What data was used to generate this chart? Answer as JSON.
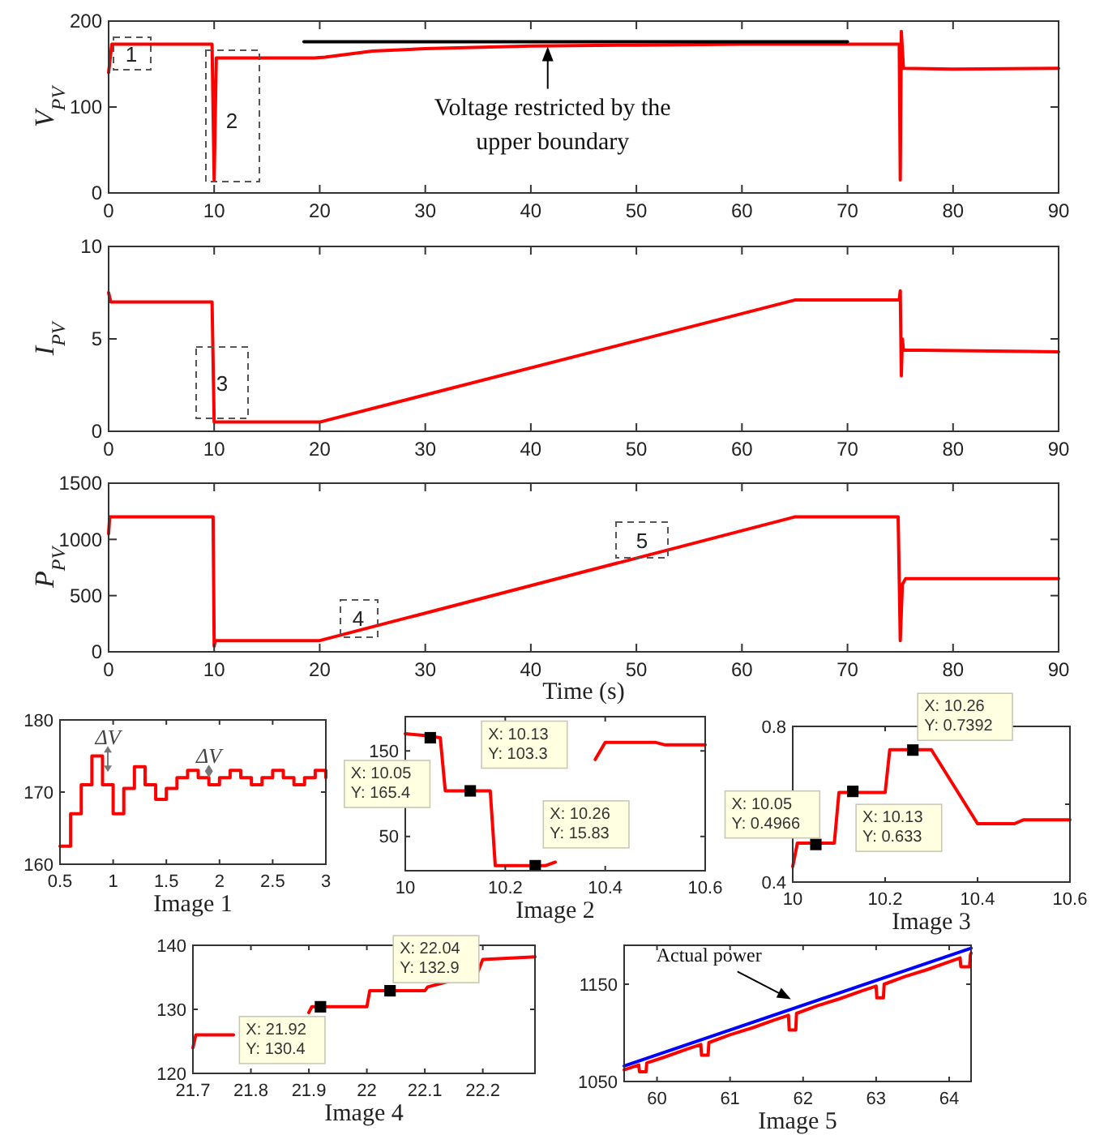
{
  "chart_data": [
    {
      "type": "line",
      "ylabel": "V$_{PV}$",
      "xlim": [
        0,
        90
      ],
      "ylim": [
        0,
        200
      ],
      "xticks": [
        0,
        10,
        20,
        30,
        40,
        50,
        60,
        70,
        80,
        90
      ],
      "yticks": [
        0,
        100,
        200
      ],
      "annotations": [
        "1",
        "2",
        {
          "text": "Voltage restricted by the upper boundary",
          "x": 41.6,
          "y": 174
        }
      ],
      "series": [
        {
          "color": "#ff0000",
          "x": [
            0,
            0.3,
            9.8,
            10,
            10.2,
            19.5,
            20.5,
            25,
            30,
            40,
            50,
            60,
            70,
            74.9,
            75,
            75.1,
            75.3,
            80,
            90
          ],
          "values": [
            140,
            173,
            173,
            15,
            157,
            157,
            158,
            165,
            168,
            171,
            172,
            173,
            173,
            173,
            15,
            188,
            145,
            144,
            145
          ]
        },
        {
          "color": "#000000",
          "x": [
            18.5,
            70
          ],
          "values": [
            176,
            176
          ]
        }
      ]
    },
    {
      "type": "line",
      "ylabel": "I$_{PV}$",
      "xlim": [
        0,
        90
      ],
      "ylim": [
        0,
        10
      ],
      "xticks": [
        0,
        10,
        20,
        30,
        40,
        50,
        60,
        70,
        80,
        90
      ],
      "yticks": [
        0,
        5,
        10
      ],
      "annotations": [
        "3"
      ],
      "series": [
        {
          "color": "#ff0000",
          "x": [
            0,
            0.2,
            9.8,
            10,
            19.8,
            20,
            65,
            74.9,
            75,
            75.1,
            75.2,
            75.3,
            90
          ],
          "values": [
            7.5,
            7,
            7,
            0.5,
            0.5,
            0.5,
            7.1,
            7.1,
            7.6,
            3,
            5,
            4.4,
            4.3
          ]
        }
      ]
    },
    {
      "type": "line",
      "ylabel": "P$_{PV}$",
      "xlabel": "Time (s)",
      "xlim": [
        0,
        90
      ],
      "ylim": [
        0,
        1500
      ],
      "xticks": [
        0,
        10,
        20,
        30,
        40,
        50,
        60,
        70,
        80,
        90
      ],
      "yticks": [
        0,
        500,
        1000,
        1500
      ],
      "annotations": [
        "4",
        "5"
      ],
      "series": [
        {
          "color": "#ff0000",
          "x": [
            0,
            0.1,
            9.9,
            10,
            10.1,
            20,
            65,
            74.8,
            75,
            75.2,
            75.5,
            90
          ],
          "values": [
            1050,
            1200,
            1200,
            50,
            100,
            100,
            1200,
            1200,
            100,
            600,
            650,
            650
          ]
        }
      ]
    },
    {
      "type": "step",
      "xlabel": "Image 1",
      "xlim": [
        0.5,
        3
      ],
      "ylim": [
        160,
        180
      ],
      "xticks": [
        0.5,
        1,
        1.5,
        2,
        2.5,
        3
      ],
      "yticks": [
        160,
        170,
        180
      ],
      "annotations": [
        {
          "text": "ΔV",
          "x": 0.95,
          "y": 173
        },
        {
          "text": "ΔV",
          "x": 1.9,
          "y": 172
        }
      ],
      "series": [
        {
          "color": "#ff0000",
          "x": [
            0.5,
            0.6,
            0.7,
            0.8,
            0.9,
            1.0,
            1.1,
            1.2,
            1.3,
            1.4,
            1.5,
            1.6,
            1.7,
            1.8,
            1.9,
            2.0,
            2.1,
            2.2,
            2.3,
            2.4,
            2.5,
            2.6,
            2.7,
            2.8,
            2.9,
            3.0
          ],
          "values": [
            162.5,
            167,
            171,
            175,
            171,
            167,
            170.5,
            173.5,
            171,
            169,
            170.5,
            172,
            173,
            172,
            171,
            172,
            173,
            172,
            171,
            172,
            173,
            172,
            171,
            172,
            173,
            172
          ]
        }
      ]
    },
    {
      "type": "line",
      "xlabel": "Image 2",
      "xlim": [
        10,
        10.6
      ],
      "ylim": [
        10,
        190
      ],
      "xticks": [
        10,
        10.2,
        10.4,
        10.6
      ],
      "yticks": [
        50,
        150
      ],
      "series": [
        {
          "color": "#ff0000",
          "x": [
            10,
            10.04,
            10.07,
            10.08,
            10.17,
            10.18,
            10.28,
            10.3,
            10.33,
            10.38,
            10.4,
            10.5,
            10.52,
            10.6
          ],
          "values": [
            170,
            168,
            165.4,
            103.3,
            103.3,
            15.83,
            15.83,
            20,
            null,
            140,
            160,
            160,
            157,
            157
          ]
        },
        {
          "type": "scatter",
          "marker": "square",
          "color": "#000000",
          "x": [
            10.05,
            10.13,
            10.26
          ],
          "values": [
            165.4,
            103.3,
            15.83
          ],
          "value_labels": [
            "X: 10.05\nY: 165.4",
            "X: 10.13\nY: 103.3",
            "X: 10.26\nY: 15.83"
          ]
        }
      ]
    },
    {
      "type": "line",
      "xlabel": "Image 3",
      "xlim": [
        10,
        10.6
      ],
      "ylim": [
        0.4,
        0.8
      ],
      "xticks": [
        10,
        10.2,
        10.4,
        10.6
      ],
      "yticks": [
        0.4,
        {
          "value": 0.6,
          "label": null
        },
        0.8
      ],
      "series": [
        {
          "color": "#ff0000",
          "x": [
            10,
            10.01,
            10.09,
            10.1,
            10.2,
            10.21,
            10.3,
            10.4,
            10.48,
            10.5,
            10.6
          ],
          "values": [
            0.44,
            0.5,
            0.5,
            0.63,
            0.63,
            0.74,
            0.74,
            0.55,
            0.55,
            0.56,
            0.56
          ]
        },
        {
          "type": "scatter",
          "marker": "square",
          "color": "#000000",
          "x": [
            10.05,
            10.13,
            10.26
          ],
          "values": [
            0.4966,
            0.633,
            0.7392
          ],
          "value_labels": [
            "X: 10.05\nY: 0.4966",
            "X: 10.13\nY: 0.633",
            "X: 10.26\nY: 0.7392"
          ]
        }
      ]
    },
    {
      "type": "line",
      "xlabel": "Image 4",
      "xlim": [
        21.7,
        22.29
      ],
      "ylim": [
        120,
        140
      ],
      "xticks": [
        21.7,
        21.8,
        21.9,
        22,
        22.1,
        22.2
      ],
      "yticks": [
        120,
        130,
        140
      ],
      "series": [
        {
          "color": "#ff0000",
          "x": [
            21.7,
            21.705,
            21.77,
            21.85,
            21.9,
            21.905,
            22.0,
            22.005,
            22.1,
            22.105,
            22.19,
            22.2,
            22.29
          ],
          "values": [
            124,
            126,
            126,
            null,
            129.5,
            130.4,
            130.4,
            132.9,
            132.9,
            133.5,
            135.5,
            137.8,
            138.2
          ]
        },
        {
          "type": "scatter",
          "marker": "square",
          "color": "#000000",
          "x": [
            21.92,
            22.04
          ],
          "values": [
            130.4,
            132.9
          ],
          "value_labels": [
            "X: 21.92\nY: 130.4",
            "X: 22.04\nY: 132.9"
          ]
        }
      ]
    },
    {
      "type": "line",
      "xlabel": "Image 5",
      "xlim": [
        59.55,
        64.3
      ],
      "ylim": [
        1050,
        1190
      ],
      "xticks": [
        60,
        61,
        62,
        63,
        64
      ],
      "yticks": [
        1050,
        1150
      ],
      "annotations": [
        {
          "text": "Actual power",
          "x": 61.9,
          "y": 1128
        }
      ],
      "series": [
        {
          "color": "#ff0000",
          "x": [
            59.55,
            59.75,
            59.76,
            59.85,
            59.86,
            60.1,
            60.4,
            60.6,
            60.61,
            60.7,
            60.71,
            61.0,
            61.3,
            61.6,
            61.8,
            61.81,
            61.9,
            61.91,
            62.2,
            62.5,
            62.8,
            63.0,
            63.01,
            63.1,
            63.11,
            63.4,
            63.7,
            64.0,
            64.15,
            64.16,
            64.28,
            64.29,
            64.3
          ],
          "values": [
            1062,
            1067,
            1060,
            1060,
            1069,
            1075,
            1083,
            1088,
            1077,
            1077,
            1090,
            1098,
            1105,
            1113,
            1118,
            1103,
            1103,
            1120,
            1128,
            1135,
            1143,
            1148,
            1136,
            1136,
            1150,
            1158,
            1165,
            1173,
            1177,
            1168,
            1168,
            1180,
            1182
          ]
        },
        {
          "color": "#0000ff",
          "x": [
            59.55,
            64.3
          ],
          "values": [
            1066,
            1187
          ]
        }
      ]
    }
  ]
}
